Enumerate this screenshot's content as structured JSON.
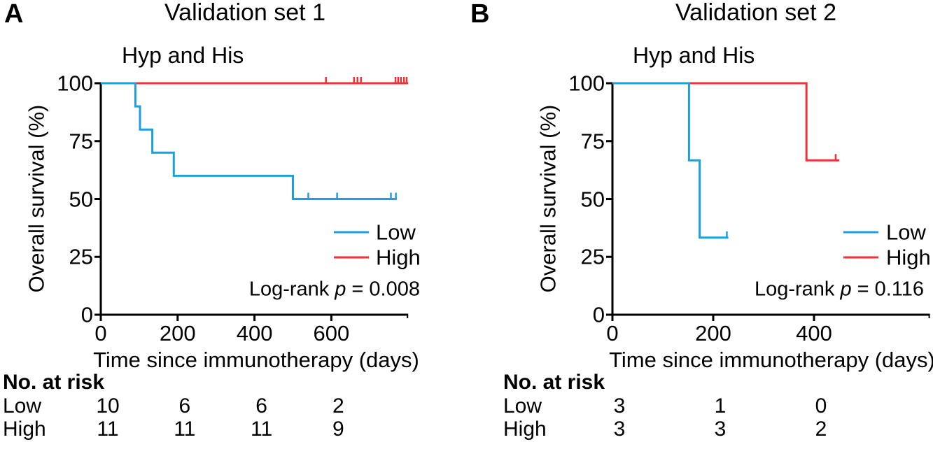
{
  "colors": {
    "low": "#1ca0db",
    "high": "#ee3235",
    "axis": "#000000",
    "text": "#000000"
  },
  "panels": [
    {
      "letter": "A",
      "title": "Validation set 1",
      "subtitle": "Hyp and His",
      "ylabel": "Overall survival (%)",
      "xlabel": "Time since immunotherapy (days)",
      "legend": {
        "low": "Low",
        "high": "High"
      },
      "logrank": {
        "label": "Log-rank",
        "p": "p",
        "value": "= 0.008"
      },
      "at_risk": {
        "header": "No. at risk",
        "rows": [
          {
            "label": "Low",
            "values": [
              "10",
              "6",
              "6",
              "2"
            ]
          },
          {
            "label": "High",
            "values": [
              "11",
              "11",
              "11",
              "9"
            ]
          }
        ]
      }
    },
    {
      "letter": "B",
      "title": "Validation set 2",
      "subtitle": "Hyp and His",
      "ylabel": "Overall survival (%)",
      "xlabel": "Time since immunotherapy (days)",
      "legend": {
        "low": "Low",
        "high": "High"
      },
      "logrank": {
        "label": "Log-rank",
        "p": "p",
        "value": "= 0.116"
      },
      "at_risk": {
        "header": "No. at risk",
        "rows": [
          {
            "label": "Low",
            "values": [
              "3",
              "1",
              "0"
            ]
          },
          {
            "label": "High",
            "values": [
              "3",
              "3",
              "2"
            ]
          }
        ]
      }
    }
  ],
  "chart_data": [
    {
      "type": "line",
      "subtype": "kaplan-meier",
      "title": "Validation set 1",
      "subtitle": "Hyp and His",
      "xlabel": "Time since immunotherapy (days)",
      "ylabel": "Overall survival (%)",
      "xlim": [
        0,
        800
      ],
      "ylim": [
        0,
        100
      ],
      "xticks": [
        0,
        200,
        400,
        600
      ],
      "yticks": [
        100,
        75,
        50,
        25,
        0
      ],
      "legend_position": "right-inside",
      "grid": false,
      "logrank_p": 0.008,
      "series": [
        {
          "name": "Low",
          "color_key": "low",
          "steps": [
            [
              0,
              100
            ],
            [
              90,
              100
            ],
            [
              90,
              90
            ],
            [
              102,
              90
            ],
            [
              102,
              80
            ],
            [
              134,
              80
            ],
            [
              134,
              70
            ],
            [
              190,
              70
            ],
            [
              190,
              60
            ],
            [
              500,
              60
            ],
            [
              500,
              50
            ],
            [
              770,
              50
            ]
          ],
          "censors": [
            [
              540,
              50
            ],
            [
              615,
              50
            ],
            [
              755,
              50
            ],
            [
              768,
              50
            ]
          ]
        },
        {
          "name": "High",
          "color_key": "high",
          "steps": [
            [
              0,
              100
            ],
            [
              800,
              100
            ]
          ],
          "censors": [
            [
              586,
              100
            ],
            [
              659,
              100
            ],
            [
              668,
              100
            ],
            [
              677,
              100
            ],
            [
              767,
              100
            ],
            [
              774,
              100
            ],
            [
              781,
              100
            ],
            [
              789,
              100
            ],
            [
              796,
              100
            ]
          ]
        }
      ],
      "at_risk_times": [
        0,
        200,
        400,
        600
      ]
    },
    {
      "type": "line",
      "subtype": "kaplan-meier",
      "title": "Validation set 2",
      "subtitle": "Hyp and His",
      "xlabel": "Time since immunotherapy (days)",
      "ylabel": "Overall survival (%)",
      "xlim": [
        0,
        630
      ],
      "ylim": [
        0,
        100
      ],
      "xticks": [
        0,
        200,
        400
      ],
      "yticks": [
        100,
        75,
        50,
        25,
        0
      ],
      "legend_position": "right-inside",
      "grid": false,
      "logrank_p": 0.116,
      "series": [
        {
          "name": "Low",
          "color_key": "low",
          "steps": [
            [
              0,
              100
            ],
            [
              152,
              100
            ],
            [
              152,
              66.7
            ],
            [
              173,
              66.7
            ],
            [
              173,
              33.3
            ],
            [
              230,
              33.3
            ]
          ],
          "censors": [
            [
              227,
              33.3
            ]
          ]
        },
        {
          "name": "High",
          "color_key": "high",
          "steps": [
            [
              0,
              100
            ],
            [
              385,
              100
            ],
            [
              385,
              66.7
            ],
            [
              450,
              66.7
            ]
          ],
          "censors": [
            [
              443,
              66.7
            ]
          ]
        }
      ],
      "at_risk_times": [
        0,
        200,
        400
      ]
    }
  ]
}
